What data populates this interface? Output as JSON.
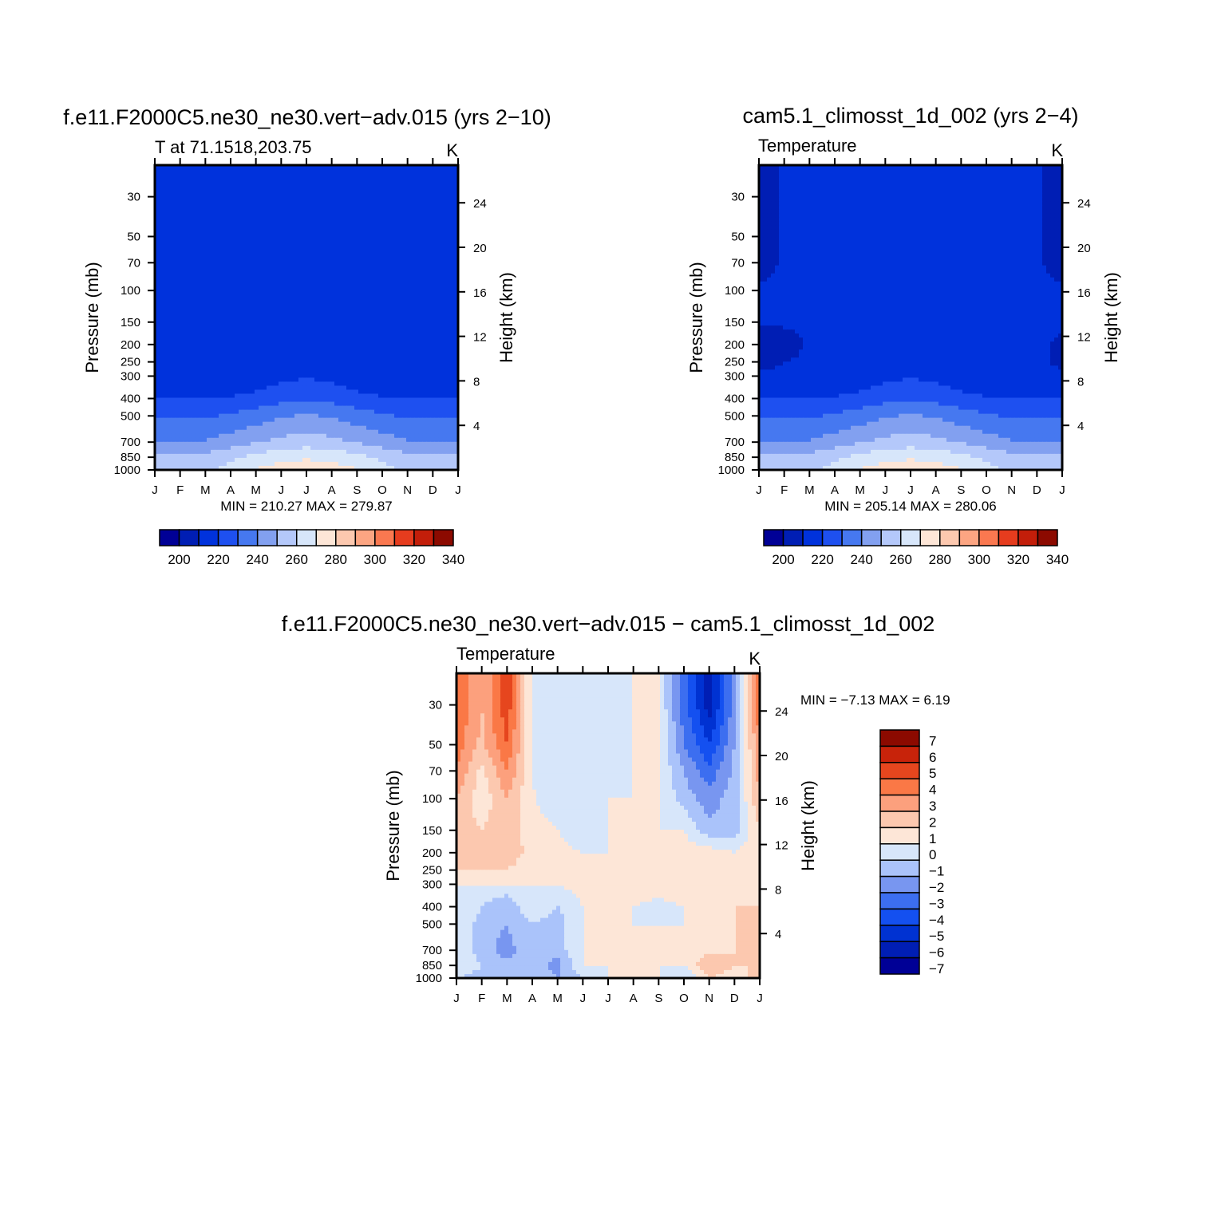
{
  "chart_data": [
    {
      "type": "heatmap",
      "title": "f.e11.F2000C5.ne30_ne30.vert−adv.015 (yrs 2−10)",
      "subtitle": "T at 71.1518,203.75",
      "units": "K",
      "ylabel": "Pressure (mb)",
      "ylabel_right": "Height (km)",
      "x_ticks": [
        "J",
        "F",
        "M",
        "A",
        "M",
        "J",
        "J",
        "A",
        "S",
        "O",
        "N",
        "D",
        "J"
      ],
      "y_ticks": [
        "30",
        "50",
        "70",
        "100",
        "150",
        "200",
        "250",
        "300",
        "400",
        "500",
        "700",
        "850",
        "1000"
      ],
      "y_ticks_right": [
        "24",
        "20",
        "16",
        "12",
        "8",
        "4"
      ],
      "minmax_text": "MIN =  210.27  MAX =  279.87",
      "min": 210.27,
      "max": 279.87,
      "colorbar_labels": [
        "200",
        "220",
        "240",
        "260",
        "280",
        "300",
        "320",
        "340"
      ],
      "y_levels": [
        30,
        50,
        70,
        100,
        150,
        200,
        250,
        300,
        400,
        500,
        700,
        850,
        1000
      ],
      "values": [
        [
          216,
          216,
          216,
          222,
          222,
          222,
          222,
          222,
          222,
          216,
          216,
          216,
          216
        ],
        [
          216,
          216,
          216,
          222,
          222,
          222,
          222,
          222,
          222,
          216,
          216,
          216,
          216
        ],
        [
          216,
          216,
          216,
          222,
          222,
          222,
          222,
          222,
          222,
          218,
          216,
          216,
          216
        ],
        [
          216,
          216,
          216,
          222,
          222,
          222,
          222,
          222,
          222,
          220,
          216,
          216,
          216
        ],
        [
          216,
          216,
          216,
          219,
          222,
          222,
          222,
          222,
          222,
          217,
          216,
          216,
          216
        ],
        [
          216,
          216,
          216,
          216,
          217,
          219,
          221,
          219,
          216,
          216,
          216,
          216,
          216
        ],
        [
          216,
          216,
          216,
          216,
          216,
          218,
          222,
          218,
          216,
          216,
          216,
          216,
          216
        ],
        [
          216,
          216,
          216,
          216,
          218,
          222,
          224,
          222,
          218,
          216,
          216,
          216,
          216
        ],
        [
          226,
          226,
          226,
          226,
          228,
          232,
          234,
          232,
          228,
          226,
          226,
          226,
          226
        ],
        [
          234,
          234,
          234,
          236,
          240,
          244,
          246,
          244,
          240,
          236,
          234,
          234,
          234
        ],
        [
          246,
          246,
          246,
          250,
          254,
          258,
          260,
          258,
          254,
          250,
          246,
          246,
          246
        ],
        [
          258,
          258,
          259,
          263,
          268,
          272,
          274,
          272,
          268,
          263,
          259,
          258,
          258
        ],
        [
          262,
          262,
          264,
          268,
          276,
          279,
          279.8,
          279,
          276,
          268,
          264,
          262,
          262
        ]
      ]
    },
    {
      "type": "heatmap",
      "title": "cam5.1_climosst_1d_002 (yrs 2−4)",
      "subtitle": "Temperature",
      "units": "K",
      "ylabel": "Pressure (mb)",
      "ylabel_right": "Height (km)",
      "x_ticks": [
        "J",
        "F",
        "M",
        "A",
        "M",
        "J",
        "J",
        "A",
        "S",
        "O",
        "N",
        "D",
        "J"
      ],
      "y_ticks": [
        "30",
        "50",
        "70",
        "100",
        "150",
        "200",
        "250",
        "300",
        "400",
        "500",
        "700",
        "850",
        "1000"
      ],
      "y_ticks_right": [
        "24",
        "20",
        "16",
        "12",
        "8",
        "4"
      ],
      "minmax_text": "MIN =  205.14  MAX =  280.06",
      "min": 205.14,
      "max": 280.06,
      "colorbar_labels": [
        "200",
        "220",
        "240",
        "260",
        "280",
        "300",
        "320",
        "340"
      ],
      "y_levels": [
        30,
        50,
        70,
        100,
        150,
        200,
        250,
        300,
        400,
        500,
        700,
        850,
        1000
      ],
      "values": [
        [
          209,
          216,
          216,
          222,
          222,
          222,
          222,
          222,
          216,
          216,
          222,
          216,
          209
        ],
        [
          209,
          216,
          216,
          221,
          222,
          222,
          222,
          222,
          216,
          216,
          216,
          216,
          209
        ],
        [
          212,
          216,
          216,
          220,
          222,
          222,
          222,
          222,
          218,
          216,
          216,
          216,
          212
        ],
        [
          216,
          216,
          216,
          219,
          222,
          222,
          222,
          222,
          220,
          216,
          216,
          216,
          216
        ],
        [
          216,
          216,
          216,
          216,
          221,
          222,
          222,
          222,
          218,
          216,
          216,
          216,
          216
        ],
        [
          209,
          212,
          216,
          216,
          217,
          219,
          221,
          219,
          216,
          216,
          216,
          216,
          214
        ],
        [
          213,
          215,
          216,
          216,
          216,
          218,
          222,
          218,
          216,
          216,
          216,
          216,
          214
        ],
        [
          216,
          216,
          216,
          216,
          218,
          222,
          224,
          222,
          218,
          216,
          216,
          216,
          216
        ],
        [
          226,
          226,
          226,
          226,
          228,
          232,
          234,
          232,
          228,
          226,
          226,
          226,
          226
        ],
        [
          234,
          234,
          234,
          236,
          240,
          244,
          246,
          244,
          240,
          236,
          234,
          234,
          234
        ],
        [
          246,
          246,
          246,
          250,
          254,
          258,
          260,
          258,
          254,
          250,
          246,
          246,
          246
        ],
        [
          258,
          258,
          259,
          263,
          268,
          272,
          274,
          272,
          268,
          263,
          259,
          258,
          258
        ],
        [
          262,
          262,
          264,
          268,
          276,
          279,
          280,
          279,
          276,
          268,
          264,
          262,
          262
        ]
      ]
    },
    {
      "type": "heatmap",
      "title": "f.e11.F2000C5.ne30_ne30.vert−adv.015 − cam5.1_climosst_1d_002",
      "subtitle": "Temperature",
      "units": "K",
      "ylabel": "Pressure (mb)",
      "ylabel_right": "Height (km)",
      "x_ticks": [
        "J",
        "F",
        "M",
        "A",
        "M",
        "J",
        "J",
        "A",
        "S",
        "O",
        "N",
        "D",
        "J"
      ],
      "y_ticks": [
        "30",
        "50",
        "70",
        "100",
        "150",
        "200",
        "250",
        "300",
        "400",
        "500",
        "700",
        "850",
        "1000"
      ],
      "y_ticks_right": [
        "24",
        "20",
        "16",
        "12",
        "8",
        "4"
      ],
      "minmax_text": "MIN =    −7.13  MAX =     6.19",
      "min": -7.13,
      "max": 6.19,
      "colorbar_labels": [
        "7",
        "6",
        "5",
        "4",
        "3",
        "2",
        "1",
        "0",
        "−1",
        "−2",
        "−3",
        "−4",
        "−5",
        "−6",
        "−7"
      ],
      "y_levels": [
        30,
        50,
        70,
        100,
        150,
        200,
        250,
        300,
        400,
        500,
        700,
        850,
        1000
      ],
      "values": [
        [
          4.5,
          2.5,
          5.2,
          0.3,
          -0.5,
          -0.5,
          -0.5,
          0.5,
          0.5,
          -3,
          -6,
          -2,
          4.5
        ],
        [
          4,
          2.2,
          4.5,
          0.5,
          -0.5,
          -0.5,
          -0.5,
          0.5,
          0.5,
          -2.5,
          -4.5,
          -1.5,
          3.5
        ],
        [
          3.5,
          1.2,
          3.5,
          0.5,
          -0.5,
          -0.5,
          -0.5,
          0.5,
          0.5,
          -1.5,
          -3.2,
          -1.2,
          3
        ],
        [
          2.5,
          0.8,
          2.5,
          0.6,
          -0.3,
          -0.5,
          0.5,
          0.5,
          0.5,
          -1,
          -2,
          -1,
          2.5
        ],
        [
          2,
          1.5,
          2.2,
          1,
          0.5,
          -0.5,
          0.5,
          0.5,
          0.5,
          0.5,
          -1.2,
          -1,
          1.5
        ],
        [
          2,
          2,
          2,
          1.2,
          1,
          0.5,
          0.5,
          1,
          1,
          1,
          1,
          0.5,
          1.5
        ],
        [
          1.5,
          1.5,
          1.5,
          1,
          1,
          1,
          1,
          1,
          1,
          1.2,
          1.2,
          1.2,
          1.5
        ],
        [
          0.5,
          0.5,
          0.5,
          0.5,
          0.5,
          1,
          1,
          1,
          1,
          1.2,
          1.2,
          1.2,
          1.5
        ],
        [
          0.5,
          -0.5,
          -1.5,
          0.5,
          -0.5,
          0.5,
          0.5,
          0.5,
          0.2,
          0.5,
          1.5,
          1.5,
          1.5
        ],
        [
          0.5,
          -1,
          -1.5,
          -0.5,
          -1,
          0.5,
          0.5,
          0.5,
          0.5,
          0.5,
          1.2,
          1.5,
          1.5
        ],
        [
          0.5,
          -1,
          -2,
          -0.5,
          -1,
          0.5,
          0.5,
          0.5,
          0.5,
          0.5,
          1.2,
          1.5,
          1.5
        ],
        [
          0.5,
          -0.5,
          -1.2,
          -1,
          -2,
          0.5,
          0.5,
          0.5,
          0.5,
          0.5,
          2.5,
          1.5,
          1.5
        ],
        [
          -0.5,
          -1,
          -0.5,
          -0.5,
          -1.5,
          -0.5,
          0.5,
          0.5,
          0.5,
          -0.5,
          1.5,
          1,
          2
        ]
      ]
    }
  ],
  "colors": {
    "abs_fill": [
      "#000096",
      "#001eb4",
      "#0032dc",
      "#1e50f0",
      "#4678f0",
      "#82a0f0",
      "#b4c8fa",
      "#d7e6fa",
      "#fde6d7",
      "#fcc8af",
      "#fca582",
      "#fa7850",
      "#e63c1e",
      "#c31e0a",
      "#8c0a00"
    ],
    "diff_fill": [
      "#000096",
      "#001eb4",
      "#0032d2",
      "#1450f0",
      "#3c6ef0",
      "#7896f0",
      "#aac3fa",
      "#d7e6fa",
      "#fde6d7",
      "#fcc8af",
      "#fca07d",
      "#fa7846",
      "#e6461e",
      "#c8230a",
      "#8c0a00"
    ]
  }
}
